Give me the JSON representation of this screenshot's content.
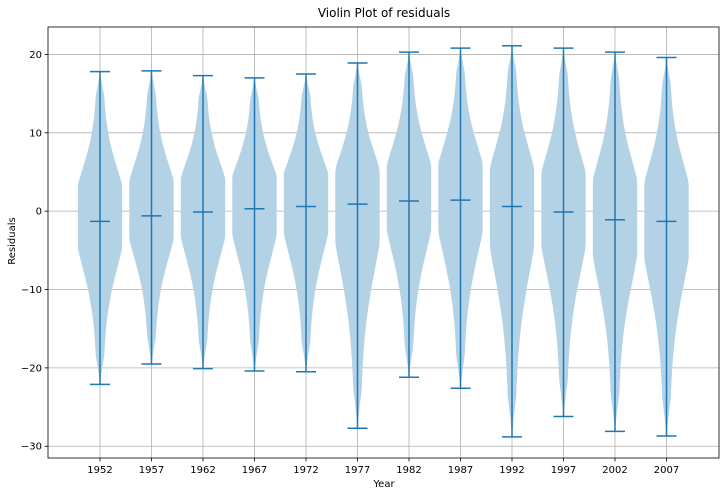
{
  "chart_data": {
    "type": "violin",
    "title": "Violin Plot of residuals",
    "xlabel": "Year",
    "ylabel": "Residuals",
    "ylim": [
      -31.5,
      23.5
    ],
    "yticks": [
      -30,
      -20,
      -10,
      0,
      10,
      20
    ],
    "grid": true,
    "categories": [
      "1952",
      "1957",
      "1962",
      "1967",
      "1972",
      "1977",
      "1982",
      "1987",
      "1992",
      "1997",
      "2002",
      "2007"
    ],
    "max": [
      17.8,
      17.9,
      17.3,
      17.0,
      17.5,
      18.9,
      20.3,
      20.8,
      21.1,
      20.8,
      20.3,
      19.6
    ],
    "mean": [
      -1.3,
      -0.6,
      -0.1,
      0.3,
      0.6,
      0.9,
      1.3,
      1.4,
      0.6,
      -0.1,
      -1.1,
      -1.3
    ],
    "min": [
      -22.1,
      -19.5,
      -20.1,
      -20.4,
      -20.5,
      -27.7,
      -21.2,
      -22.6,
      -28.8,
      -26.2,
      -28.1,
      -28.7
    ],
    "color": "#1f77b4",
    "fill_color": "#b4d2e6"
  }
}
